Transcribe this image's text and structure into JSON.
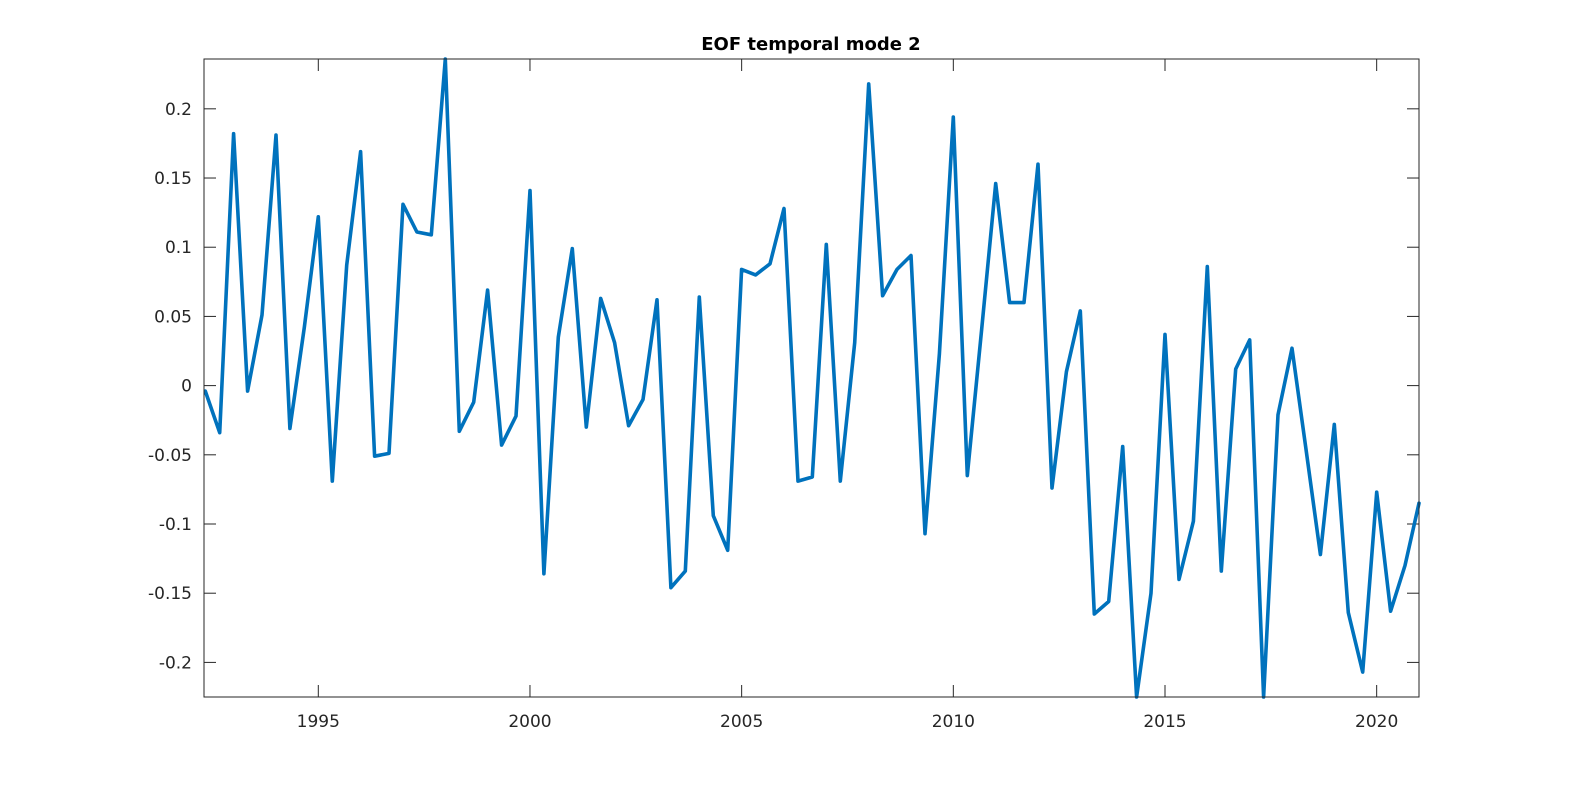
{
  "chart_data": {
    "type": "line",
    "title": "EOF temporal mode 2",
    "xlabel": "",
    "ylabel": "",
    "xlim": [
      1992.3,
      2021.0
    ],
    "ylim": [
      -0.225,
      0.236
    ],
    "grid": false,
    "legend": "none",
    "line_color": "#0072BD",
    "x_ticks": [
      1995,
      2000,
      2005,
      2010,
      2015,
      2020
    ],
    "x_tick_labels": [
      "1995",
      "2000",
      "2005",
      "2010",
      "2015",
      "2020"
    ],
    "y_ticks": [
      0.2,
      0.15,
      0.1,
      0.05,
      0,
      -0.05,
      -0.1,
      -0.15,
      -0.2
    ],
    "y_tick_labels": [
      "0.2",
      "0.15",
      "0.1",
      "0.05",
      "0",
      "-0.05",
      "-0.1",
      "-0.15",
      "-0.2"
    ],
    "series": [
      {
        "x": [
          1992.33,
          1992.67,
          1993.0,
          1993.33,
          1993.67,
          1994.0,
          1994.33,
          1994.67,
          1995.0,
          1995.33,
          1995.67,
          1996.0,
          1996.33,
          1996.67,
          1997.0,
          1997.33,
          1997.67,
          1998.0,
          1998.33,
          1998.67,
          1999.0,
          1999.33,
          1999.67,
          2000.0,
          2000.33,
          2000.67,
          2001.0,
          2001.33,
          2001.67,
          2002.0,
          2002.33,
          2002.67,
          2003.0,
          2003.33,
          2003.67,
          2004.0,
          2004.33,
          2004.67,
          2005.0,
          2005.33,
          2005.67,
          2006.0,
          2006.33,
          2006.67,
          2007.0,
          2007.33,
          2007.67,
          2008.0,
          2008.33,
          2008.67,
          2009.0,
          2009.33,
          2009.67,
          2010.0,
          2010.33,
          2010.67,
          2011.0,
          2011.33,
          2011.67,
          2012.0,
          2012.33,
          2012.67,
          2013.0,
          2013.33,
          2013.67,
          2014.0,
          2014.33,
          2014.67,
          2015.0,
          2015.33,
          2015.67,
          2016.0,
          2016.33,
          2016.67,
          2017.0,
          2017.33,
          2017.67,
          2018.0,
          2018.33,
          2018.67,
          2019.0,
          2019.33,
          2019.67,
          2020.0,
          2020.33,
          2020.67,
          2021.0
        ],
        "y": [
          -0.004,
          -0.034,
          0.182,
          -0.004,
          0.051,
          0.181,
          -0.031,
          0.042,
          0.122,
          -0.069,
          0.087,
          0.169,
          -0.051,
          -0.049,
          0.131,
          0.111,
          0.109,
          0.236,
          -0.033,
          -0.012,
          0.069,
          -0.043,
          -0.022,
          0.141,
          -0.136,
          0.035,
          0.099,
          -0.03,
          0.063,
          0.031,
          -0.029,
          -0.01,
          0.062,
          -0.146,
          -0.134,
          0.064,
          -0.094,
          -0.119,
          0.084,
          0.08,
          0.088,
          0.128,
          -0.069,
          -0.066,
          0.102,
          -0.069,
          0.031,
          0.218,
          0.065,
          0.084,
          0.094,
          -0.107,
          0.023,
          0.194,
          -0.065,
          0.041,
          0.146,
          0.06,
          0.06,
          0.16,
          -0.074,
          0.01,
          0.054,
          -0.165,
          -0.156,
          -0.044,
          -0.225,
          -0.15,
          0.037,
          -0.14,
          -0.098,
          0.086,
          -0.134,
          0.012,
          0.033,
          -0.225,
          -0.021,
          0.027,
          -0.046,
          -0.122,
          -0.028,
          -0.164,
          -0.207,
          -0.077,
          -0.163,
          -0.13,
          -0.085
        ]
      }
    ]
  }
}
